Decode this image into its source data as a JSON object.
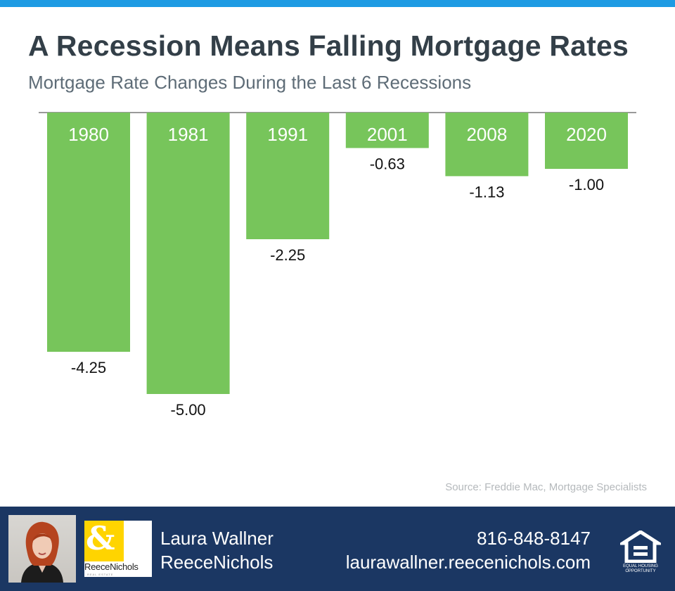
{
  "header": {
    "title": "A Recession Means Falling Mortgage Rates",
    "subtitle": "Mortgage Rate Changes During the Last 6 Recessions"
  },
  "chart_data": {
    "type": "bar",
    "categories": [
      "1980",
      "1981",
      "1991",
      "2001",
      "2008",
      "2020"
    ],
    "values": [
      -4.25,
      -5.0,
      -2.25,
      -0.63,
      -1.13,
      -1.0
    ],
    "value_labels": [
      "-4.25",
      "-5.00",
      "-2.25",
      "-0.63",
      "-1.13",
      "-1.00"
    ],
    "title": "",
    "xlabel": "",
    "ylabel": "",
    "ylim": [
      -6,
      0
    ],
    "grid": false,
    "legend": "none",
    "category_labels_position": "inside-top-of-bar",
    "bar_color": "#77c55b"
  },
  "source": "Source: Freddie Mac, Mortgage Specialists",
  "footer": {
    "agent_name": "Laura Wallner",
    "company": "ReeceNichols",
    "phone": "816-848-8147",
    "website": "laurawallner.reecenichols.com",
    "logo_text": "ReeceNichols",
    "logo_subtext": "REAL ESTATE",
    "eho_text_1": "EQUAL HOUSING",
    "eho_text_2": "OPPORTUNITY",
    "logo_icon": "ampersand-logo-icon",
    "eho_icon": "equal-housing-icon"
  },
  "colors": {
    "top_bar": "#1e9be3",
    "footer_bg": "#1b3763",
    "title": "#333f48",
    "subtitle": "#5e6c77",
    "source": "#b5b9bc",
    "logo_yellow": "#ffd400"
  }
}
